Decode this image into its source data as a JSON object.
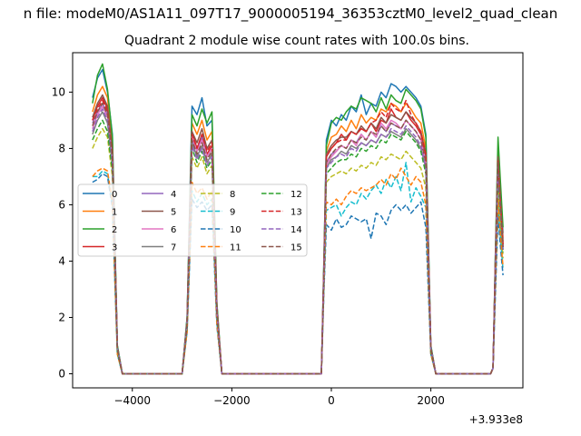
{
  "figure": {
    "suptitle": "n file: modeM0/AS1A11_097T17_9000005194_36353cztM0_level2_quad_clean",
    "offset_text": "+3.933e8"
  },
  "chart_data": {
    "type": "line",
    "title": "Quadrant 2 module wise count rates with 100.0s bins.",
    "xlabel": "",
    "ylabel": "",
    "xlim": [
      -5200,
      3850
    ],
    "ylim": [
      -0.5,
      11.4
    ],
    "x_offset": 393300000,
    "xticks": [
      -4000,
      -2000,
      0,
      2000
    ],
    "xtick_labels": [
      "−4000",
      "−2000",
      "0",
      "2000"
    ],
    "yticks": [
      0,
      2,
      4,
      6,
      8,
      10
    ],
    "ytick_labels": [
      "0",
      "2",
      "4",
      "6",
      "8",
      "10"
    ],
    "grid": false,
    "legend_placement": "center-left",
    "legend_columns": 4,
    "x": [
      -4800,
      -4700,
      -4600,
      -4500,
      -4400,
      -4300,
      -4200,
      -3000,
      -2900,
      -2800,
      -2700,
      -2600,
      -2500,
      -2400,
      -2300,
      -2200,
      -2100,
      -200,
      -150,
      -100,
      0,
      100,
      200,
      300,
      400,
      500,
      600,
      700,
      800,
      900,
      1000,
      1100,
      1200,
      1300,
      1400,
      1500,
      1600,
      1700,
      1800,
      1900,
      2000,
      2100,
      3200,
      3250,
      3300,
      3350,
      3400,
      3450
    ],
    "series": [
      {
        "name": "0",
        "color": "#1f77b4",
        "dash": "solid",
        "values": [
          9.8,
          10.5,
          10.8,
          10.0,
          8.5,
          1.0,
          0.0,
          0.0,
          2.0,
          9.5,
          9.2,
          9.8,
          8.8,
          9.0,
          2.5,
          0.0,
          0.0,
          0.0,
          4.0,
          8.3,
          9.0,
          8.8,
          9.2,
          9.0,
          9.5,
          9.3,
          9.9,
          9.2,
          9.6,
          9.5,
          10.0,
          9.8,
          10.3,
          10.2,
          10.0,
          10.2,
          10.0,
          9.8,
          9.5,
          8.5,
          1.0,
          0.0,
          0.0,
          0.2,
          4.5,
          8.0,
          6.5,
          5.0
        ]
      },
      {
        "name": "1",
        "color": "#ff7f0e",
        "dash": "solid",
        "values": [
          9.3,
          9.9,
          10.2,
          9.8,
          8.2,
          0.9,
          0.0,
          0.0,
          1.9,
          8.9,
          8.5,
          9.0,
          8.3,
          8.6,
          2.4,
          0.0,
          0.0,
          0.0,
          3.8,
          7.9,
          8.4,
          8.5,
          8.8,
          8.6,
          9.0,
          8.7,
          9.2,
          8.9,
          9.1,
          9.0,
          9.4,
          9.3,
          9.6,
          9.5,
          9.3,
          9.6,
          9.4,
          9.1,
          8.9,
          8.0,
          0.9,
          0.0,
          0.0,
          0.2,
          4.3,
          7.8,
          6.2,
          4.8
        ]
      },
      {
        "name": "2",
        "color": "#2ca02c",
        "dash": "solid",
        "values": [
          9.6,
          10.6,
          11.0,
          10.1,
          8.4,
          1.0,
          0.0,
          0.0,
          2.0,
          9.2,
          8.8,
          9.4,
          8.9,
          9.3,
          2.5,
          0.0,
          0.0,
          0.0,
          4.0,
          8.1,
          8.9,
          9.1,
          9.0,
          9.3,
          9.5,
          9.4,
          9.8,
          9.7,
          9.6,
          9.3,
          9.8,
          9.4,
          9.9,
          9.7,
          9.6,
          10.1,
          9.9,
          9.7,
          9.4,
          8.4,
          1.0,
          0.0,
          0.0,
          0.2,
          4.6,
          8.4,
          6.8,
          5.2
        ]
      },
      {
        "name": "3",
        "color": "#d62728",
        "dash": "solid",
        "values": [
          9.0,
          9.5,
          9.8,
          9.4,
          7.8,
          0.9,
          0.0,
          0.0,
          1.8,
          8.6,
          8.0,
          8.5,
          7.8,
          8.1,
          2.3,
          0.0,
          0.0,
          0.0,
          3.7,
          7.7,
          8.0,
          8.2,
          8.5,
          8.3,
          8.6,
          8.5,
          8.7,
          8.6,
          8.9,
          8.6,
          9.0,
          8.9,
          9.4,
          9.1,
          9.0,
          9.3,
          9.0,
          8.8,
          8.5,
          7.7,
          0.9,
          0.0,
          0.0,
          0.2,
          4.2,
          7.6,
          6.0,
          4.6
        ]
      },
      {
        "name": "4",
        "color": "#9467bd",
        "dash": "solid",
        "values": [
          8.9,
          9.3,
          9.6,
          9.2,
          7.7,
          0.9,
          0.0,
          0.0,
          1.8,
          8.3,
          7.9,
          8.4,
          7.7,
          8.0,
          2.2,
          0.0,
          0.0,
          0.0,
          3.6,
          7.5,
          7.8,
          7.9,
          8.1,
          8.0,
          8.3,
          8.2,
          8.5,
          8.3,
          8.6,
          8.4,
          8.8,
          8.6,
          8.9,
          8.8,
          8.7,
          9.0,
          8.8,
          8.6,
          8.3,
          7.5,
          0.9,
          0.0,
          0.0,
          0.2,
          4.1,
          7.4,
          5.9,
          4.5
        ]
      },
      {
        "name": "5",
        "color": "#8c564b",
        "dash": "solid",
        "values": [
          9.1,
          9.6,
          9.9,
          9.5,
          7.9,
          0.9,
          0.0,
          0.0,
          1.9,
          8.6,
          8.2,
          8.7,
          8.0,
          8.3,
          2.3,
          0.0,
          0.0,
          0.0,
          3.7,
          7.8,
          8.1,
          8.3,
          8.4,
          8.4,
          8.6,
          8.5,
          8.8,
          8.6,
          8.9,
          8.7,
          9.1,
          8.9,
          9.2,
          9.1,
          9.0,
          9.3,
          9.1,
          8.9,
          8.6,
          7.8,
          0.9,
          0.0,
          0.0,
          0.2,
          4.3,
          7.7,
          6.1,
          4.7
        ]
      },
      {
        "name": "6",
        "color": "#e377c2",
        "dash": "solid",
        "values": [
          8.7,
          9.2,
          9.5,
          9.1,
          7.6,
          0.9,
          0.0,
          0.0,
          1.8,
          8.4,
          7.9,
          8.3,
          7.7,
          8.0,
          2.2,
          0.0,
          0.0,
          0.0,
          3.6,
          7.4,
          7.7,
          7.9,
          8.1,
          8.0,
          8.3,
          8.1,
          8.5,
          8.3,
          8.6,
          8.4,
          8.9,
          8.7,
          9.0,
          8.9,
          8.7,
          9.0,
          8.8,
          8.6,
          8.3,
          7.5,
          0.9,
          0.0,
          0.0,
          0.2,
          4.1,
          7.4,
          5.9,
          4.5
        ]
      },
      {
        "name": "7",
        "color": "#7f7f7f",
        "dash": "solid",
        "values": [
          8.5,
          9.0,
          9.3,
          8.9,
          7.4,
          0.8,
          0.0,
          0.0,
          1.8,
          8.2,
          7.7,
          8.1,
          7.5,
          7.8,
          2.2,
          0.0,
          0.0,
          0.0,
          3.5,
          7.3,
          7.6,
          7.7,
          7.9,
          7.8,
          8.1,
          8.0,
          8.2,
          8.1,
          8.3,
          8.2,
          8.5,
          8.4,
          8.6,
          8.5,
          8.4,
          8.7,
          8.5,
          8.3,
          8.0,
          7.3,
          0.8,
          0.0,
          0.0,
          0.2,
          4.0,
          7.2,
          5.8,
          4.4
        ]
      },
      {
        "name": "8",
        "color": "#bcbd22",
        "dash": "dashed",
        "values": [
          8.0,
          8.4,
          8.7,
          8.4,
          7.0,
          0.8,
          0.0,
          0.0,
          1.7,
          7.7,
          7.3,
          7.7,
          7.1,
          7.4,
          2.1,
          0.0,
          0.0,
          0.0,
          3.4,
          6.8,
          7.0,
          7.1,
          7.2,
          7.1,
          7.3,
          7.2,
          7.4,
          7.3,
          7.5,
          7.4,
          7.7,
          7.6,
          7.8,
          7.7,
          7.6,
          7.9,
          7.7,
          7.5,
          7.3,
          6.6,
          0.8,
          0.0,
          0.0,
          0.2,
          3.7,
          6.8,
          5.4,
          4.1
        ]
      },
      {
        "name": "9",
        "color": "#17becf",
        "dash": "dashed",
        "values": [
          7.0,
          7.0,
          7.2,
          7.1,
          6.0,
          0.7,
          0.0,
          0.0,
          1.5,
          6.5,
          6.1,
          6.4,
          6.0,
          6.2,
          1.8,
          0.0,
          0.0,
          0.0,
          3.0,
          5.8,
          5.9,
          6.0,
          5.6,
          5.9,
          6.1,
          6.0,
          6.4,
          6.2,
          6.5,
          6.7,
          6.4,
          6.9,
          6.6,
          7.0,
          6.5,
          7.5,
          6.1,
          6.6,
          6.3,
          5.9,
          0.7,
          0.0,
          0.0,
          0.2,
          3.3,
          6.0,
          4.8,
          3.7
        ]
      },
      {
        "name": "10",
        "color": "#1f77b4",
        "dash": "dashed",
        "values": [
          6.8,
          6.9,
          7.1,
          7.0,
          5.9,
          0.7,
          0.0,
          0.0,
          1.5,
          6.2,
          5.9,
          6.1,
          5.8,
          6.0,
          1.7,
          0.0,
          0.0,
          0.0,
          2.9,
          5.3,
          5.1,
          5.5,
          5.2,
          5.3,
          5.6,
          5.5,
          5.4,
          5.5,
          4.8,
          5.7,
          5.6,
          5.3,
          5.8,
          6.0,
          5.8,
          6.0,
          5.7,
          5.9,
          6.1,
          5.2,
          0.7,
          0.0,
          0.0,
          0.2,
          3.0,
          5.6,
          4.5,
          3.5
        ]
      },
      {
        "name": "11",
        "color": "#ff7f0e",
        "dash": "dashed",
        "values": [
          7.0,
          7.2,
          7.3,
          7.2,
          6.1,
          0.7,
          0.0,
          0.0,
          1.5,
          6.8,
          6.4,
          6.6,
          6.2,
          6.5,
          1.8,
          0.0,
          0.0,
          0.0,
          3.1,
          6.1,
          6.0,
          6.2,
          6.0,
          6.3,
          6.5,
          6.4,
          6.6,
          6.5,
          6.6,
          6.7,
          6.9,
          6.7,
          7.1,
          6.9,
          7.3,
          7.0,
          6.7,
          7.0,
          6.8,
          6.0,
          0.7,
          0.0,
          0.0,
          0.2,
          3.4,
          6.2,
          4.9,
          3.8
        ]
      },
      {
        "name": "12",
        "color": "#2ca02c",
        "dash": "dashed",
        "values": [
          8.3,
          8.7,
          9.0,
          8.6,
          7.2,
          0.8,
          0.0,
          0.0,
          1.7,
          8.0,
          7.5,
          7.9,
          7.3,
          7.6,
          2.1,
          0.0,
          0.0,
          0.0,
          3.5,
          7.1,
          7.3,
          7.5,
          7.6,
          7.6,
          7.8,
          7.7,
          8.0,
          7.9,
          8.1,
          8.0,
          8.3,
          8.2,
          8.5,
          8.4,
          8.3,
          8.6,
          8.4,
          8.2,
          7.9,
          7.1,
          0.8,
          0.0,
          0.0,
          0.2,
          3.9,
          7.0,
          5.6,
          4.3
        ]
      },
      {
        "name": "13",
        "color": "#d62728",
        "dash": "dashed",
        "values": [
          9.0,
          9.4,
          9.7,
          9.3,
          7.8,
          0.9,
          0.0,
          0.0,
          1.8,
          8.5,
          8.0,
          8.5,
          7.9,
          8.2,
          2.3,
          0.0,
          0.0,
          0.0,
          3.7,
          7.7,
          8.0,
          8.2,
          8.3,
          8.3,
          8.6,
          8.5,
          8.7,
          8.6,
          8.9,
          9.0,
          9.3,
          9.1,
          9.6,
          9.4,
          9.3,
          9.7,
          9.2,
          8.9,
          8.6,
          7.8,
          0.9,
          0.0,
          0.0,
          0.2,
          4.2,
          7.6,
          6.0,
          4.6
        ]
      },
      {
        "name": "14",
        "color": "#9467bd",
        "dash": "dashed",
        "values": [
          8.6,
          9.1,
          9.4,
          9.0,
          7.5,
          0.9,
          0.0,
          0.0,
          1.8,
          8.1,
          7.6,
          8.0,
          7.4,
          7.7,
          2.2,
          0.0,
          0.0,
          0.0,
          3.5,
          7.3,
          7.5,
          7.7,
          7.8,
          7.7,
          8.0,
          7.9,
          8.2,
          8.1,
          8.3,
          8.2,
          8.5,
          8.4,
          8.7,
          8.6,
          8.5,
          8.8,
          8.6,
          8.4,
          8.1,
          7.3,
          0.9,
          0.0,
          0.0,
          0.2,
          4.0,
          7.3,
          5.8,
          4.4
        ]
      },
      {
        "name": "15",
        "color": "#8c564b",
        "dash": "dashed",
        "values": [
          8.8,
          9.3,
          9.6,
          9.2,
          7.7,
          0.9,
          0.0,
          0.0,
          1.8,
          8.3,
          7.8,
          8.2,
          7.6,
          7.9,
          2.2,
          0.0,
          0.0,
          0.0,
          3.6,
          7.5,
          7.8,
          8.0,
          8.1,
          8.0,
          8.3,
          8.2,
          8.4,
          8.3,
          8.6,
          8.5,
          8.8,
          8.6,
          8.9,
          8.8,
          8.7,
          9.0,
          8.8,
          8.6,
          8.3,
          7.5,
          0.9,
          0.0,
          0.0,
          0.2,
          4.1,
          7.5,
          6.0,
          4.5
        ]
      }
    ]
  }
}
